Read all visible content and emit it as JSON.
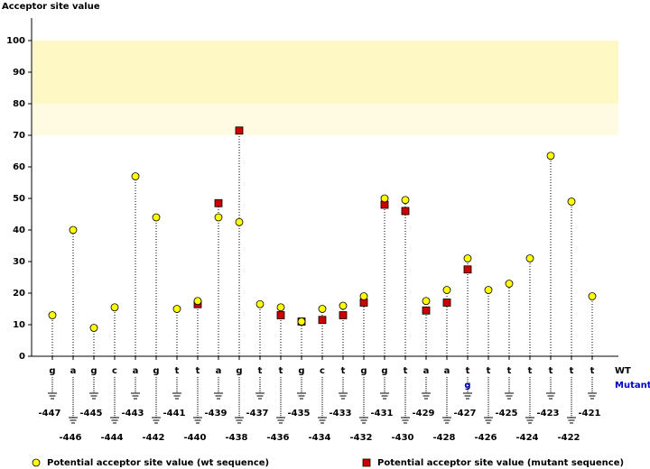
{
  "chart_data": {
    "type": "lollipop",
    "y_label": "Acceptor site value",
    "ylim": [
      0,
      100
    ],
    "yticks": [
      0,
      10,
      20,
      30,
      40,
      50,
      60,
      70,
      80,
      90,
      100
    ],
    "bands": [
      {
        "from": 80,
        "to": 100,
        "color": "#fdf8c4"
      },
      {
        "from": 70,
        "to": 80,
        "color": "#fefbe2"
      }
    ],
    "categories": [
      "-447",
      "-446",
      "-445",
      "-444",
      "-443",
      "-442",
      "-441",
      "-440",
      "-439",
      "-438",
      "-437",
      "-436",
      "-435",
      "-434",
      "-433",
      "-432",
      "-431",
      "-430",
      "-429",
      "-428",
      "-427",
      "-426",
      "-425",
      "-424",
      "-423",
      "-422",
      "-421"
    ],
    "wt_label": "WT",
    "mutant_label": "Mutant",
    "wt_bases": [
      "g",
      "a",
      "g",
      "c",
      "a",
      "g",
      "t",
      "t",
      "a",
      "g",
      "t",
      "t",
      "g",
      "c",
      "t",
      "g",
      "g",
      "t",
      "a",
      "a",
      "t",
      "t",
      "t",
      "t",
      "t",
      "t",
      "t"
    ],
    "mutant_bases": [
      null,
      null,
      null,
      null,
      null,
      null,
      null,
      null,
      null,
      null,
      null,
      null,
      null,
      null,
      null,
      null,
      null,
      null,
      null,
      null,
      "g",
      null,
      null,
      null,
      null,
      null,
      null
    ],
    "series": [
      {
        "name": "Potential acceptor site value (wt sequence)",
        "color": "#ffff00",
        "marker": "circle",
        "values": [
          13,
          40,
          9,
          15.5,
          57,
          44,
          15,
          17.5,
          44,
          42.5,
          16.5,
          15.5,
          11,
          15,
          16,
          19,
          50,
          49.5,
          17.5,
          21,
          31,
          21,
          23,
          31,
          63.5,
          49,
          19
        ]
      },
      {
        "name": "Potential acceptor site value (mutant sequence)",
        "color": "#cc0000",
        "marker": "square",
        "values": [
          null,
          null,
          null,
          null,
          null,
          null,
          null,
          16.5,
          48.5,
          71.5,
          null,
          13,
          11,
          11.5,
          13,
          17,
          48,
          46,
          14.5,
          17,
          27.5,
          null,
          null,
          null,
          null,
          null,
          null
        ]
      }
    ]
  }
}
